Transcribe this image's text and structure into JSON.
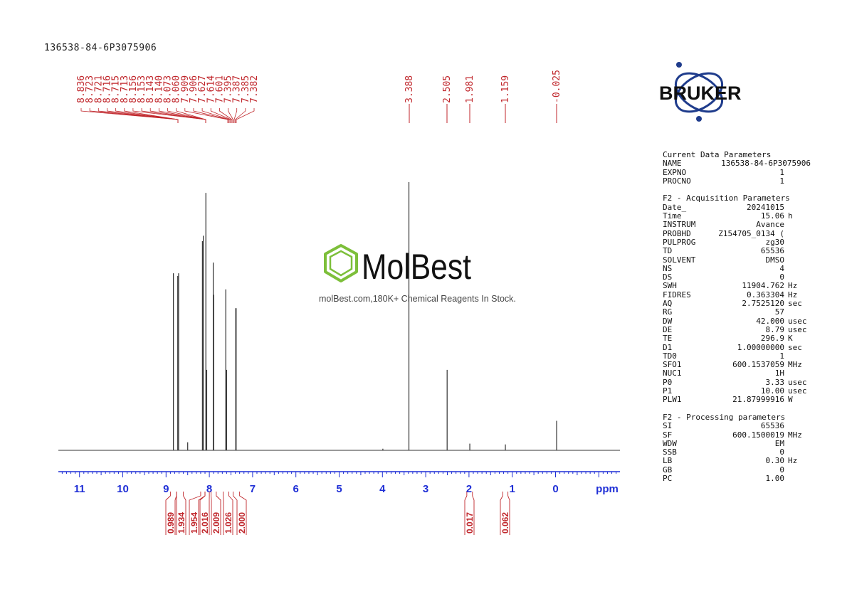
{
  "sample_title": "136538-84-6P3075906",
  "logo": {
    "text": "BRUKER",
    "icon": "atom-orbit-logo",
    "color": "#1f3c8c"
  },
  "watermark": {
    "brand": "MolBest",
    "tagline": "molBest.com,180K+ Chemical Reagents In Stock.",
    "icon": "benzene-ring-icon",
    "color": "#7dbf3a"
  },
  "colors": {
    "axis": "#1f2fd6",
    "peak_labels": "#c0262b",
    "spectrum": "#333333"
  },
  "chart_data": {
    "type": "line",
    "title": "",
    "xlabel": "ppm",
    "ylabel": "",
    "xlim": [
      11.5,
      -1.5
    ],
    "x_reversed": true,
    "grid": false,
    "x_ticks": [
      "11",
      "10",
      "9",
      "8",
      "7",
      "6",
      "5",
      "4",
      "3",
      "2",
      "1",
      "0"
    ],
    "peaks": [
      {
        "ppm": 8.83,
        "height": 0.66
      },
      {
        "ppm": 8.73,
        "height": 0.65
      },
      {
        "ppm": 8.71,
        "height": 0.66
      },
      {
        "ppm": 8.5,
        "height": 0.03
      },
      {
        "ppm": 8.16,
        "height": 0.78
      },
      {
        "ppm": 8.14,
        "height": 0.8
      },
      {
        "ppm": 8.08,
        "height": 0.96
      },
      {
        "ppm": 8.06,
        "height": 0.3
      },
      {
        "ppm": 7.91,
        "height": 0.7
      },
      {
        "ppm": 7.9,
        "height": 0.58
      },
      {
        "ppm": 7.62,
        "height": 0.6
      },
      {
        "ppm": 7.6,
        "height": 0.3
      },
      {
        "ppm": 7.39,
        "height": 0.53
      },
      {
        "ppm": 7.38,
        "height": 0.53
      },
      {
        "ppm": 3.99,
        "height": 0.006
      },
      {
        "ppm": 3.388,
        "height": 1.0
      },
      {
        "ppm": 2.505,
        "height": 0.3
      },
      {
        "ppm": 1.981,
        "height": 0.025
      },
      {
        "ppm": 1.159,
        "height": 0.022
      },
      {
        "ppm": -0.025,
        "height": 0.11
      }
    ],
    "peak_labels": {
      "groups": [
        {
          "labels": [
            "8.836",
            "8.723",
            "8.721",
            "8.716",
            "8.715",
            "8.713",
            "8.156",
            "8.153",
            "8.143",
            "8.140",
            "8.073",
            "8.060",
            "7.909",
            "7.906",
            "7.627",
            "7.614",
            "7.601",
            "7.395",
            "7.387",
            "7.385",
            "7.382"
          ],
          "target_ppm": 8.1
        },
        {
          "labels": [
            "3.388"
          ],
          "target_ppm": 3.388
        },
        {
          "labels": [
            "2.505"
          ],
          "target_ppm": 2.505
        },
        {
          "labels": [
            "1.981"
          ],
          "target_ppm": 1.981
        },
        {
          "labels": [
            "1.159"
          ],
          "target_ppm": 1.159
        },
        {
          "labels": [
            "-0.025"
          ],
          "target_ppm": -0.025
        }
      ]
    },
    "integrals": [
      {
        "value": "0.989",
        "from": 8.9,
        "to": 8.76
      },
      {
        "value": "1.934",
        "from": 8.76,
        "to": 8.6
      },
      {
        "value": "1.954",
        "from": 8.2,
        "to": 8.1
      },
      {
        "value": "2.016",
        "from": 8.1,
        "to": 8.0
      },
      {
        "value": "2.009",
        "from": 7.96,
        "to": 7.84
      },
      {
        "value": "1.026",
        "from": 7.68,
        "to": 7.55
      },
      {
        "value": "2.000",
        "from": 7.45,
        "to": 7.3
      },
      {
        "value": "0.017",
        "from": 2.05,
        "to": 1.92
      },
      {
        "value": "0.062",
        "from": 1.22,
        "to": 1.1
      }
    ]
  },
  "parameters": {
    "sections": [
      {
        "title": "Current Data Parameters",
        "rows": [
          {
            "key": "NAME",
            "value": "136538-84-6P3075906",
            "unit": "",
            "wide": true
          },
          {
            "key": "EXPNO",
            "value": "1",
            "unit": ""
          },
          {
            "key": "PROCNO",
            "value": "1",
            "unit": ""
          }
        ]
      },
      {
        "title": "F2 - Acquisition Parameters",
        "rows": [
          {
            "key": "Date_",
            "value": "20241015",
            "unit": ""
          },
          {
            "key": "Time",
            "value": "15.06",
            "unit": "h"
          },
          {
            "key": "INSTRUM",
            "value": "Avance",
            "unit": ""
          },
          {
            "key": "PROBHD",
            "value": "Z154705_0134 (",
            "unit": ""
          },
          {
            "key": "PULPROG",
            "value": "zg30",
            "unit": ""
          },
          {
            "key": "TD",
            "value": "65536",
            "unit": ""
          },
          {
            "key": "SOLVENT",
            "value": "DMSO",
            "unit": ""
          },
          {
            "key": "NS",
            "value": "4",
            "unit": ""
          },
          {
            "key": "DS",
            "value": "0",
            "unit": ""
          },
          {
            "key": "SWH",
            "value": "11904.762",
            "unit": "Hz"
          },
          {
            "key": "FIDRES",
            "value": "0.363304",
            "unit": "Hz"
          },
          {
            "key": "AQ",
            "value": "2.7525120",
            "unit": "sec"
          },
          {
            "key": "RG",
            "value": "57",
            "unit": ""
          },
          {
            "key": "DW",
            "value": "42.000",
            "unit": "usec"
          },
          {
            "key": "DE",
            "value": "8.79",
            "unit": "usec"
          },
          {
            "key": "TE",
            "value": "296.9",
            "unit": "K"
          },
          {
            "key": "D1",
            "value": "1.00000000",
            "unit": "sec"
          },
          {
            "key": "TD0",
            "value": "1",
            "unit": ""
          },
          {
            "key": "SFO1",
            "value": "600.1537059",
            "unit": "MHz"
          },
          {
            "key": "NUC1",
            "value": "1H",
            "unit": ""
          },
          {
            "key": "P0",
            "value": "3.33",
            "unit": "usec"
          },
          {
            "key": "P1",
            "value": "10.00",
            "unit": "usec"
          },
          {
            "key": "PLW1",
            "value": "21.87999916",
            "unit": "W"
          }
        ]
      },
      {
        "title": "F2 - Processing parameters",
        "rows": [
          {
            "key": "SI",
            "value": "65536",
            "unit": ""
          },
          {
            "key": "SF",
            "value": "600.1500019",
            "unit": "MHz"
          },
          {
            "key": "WDW",
            "value": "EM",
            "unit": ""
          },
          {
            "key": "SSB",
            "value": "0",
            "unit": ""
          },
          {
            "key": "LB",
            "value": "0.30",
            "unit": "Hz"
          },
          {
            "key": "GB",
            "value": "0",
            "unit": ""
          },
          {
            "key": "PC",
            "value": "1.00",
            "unit": ""
          }
        ]
      }
    ]
  }
}
